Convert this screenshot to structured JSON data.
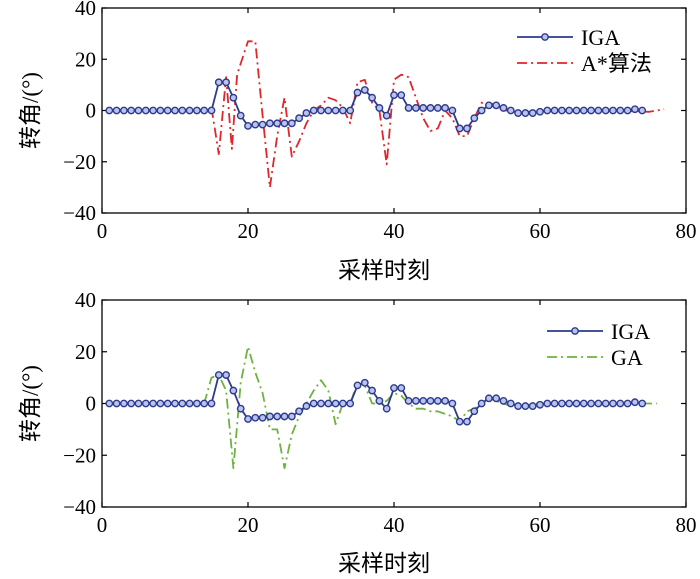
{
  "chart_data": [
    {
      "type": "line",
      "xlabel": "采样时刻",
      "ylabel": "转角/(°)",
      "xlim": [
        0,
        80
      ],
      "ylim": [
        -40,
        40
      ],
      "xticks": [
        0,
        20,
        40,
        60,
        80
      ],
      "yticks": [
        -40,
        -20,
        0,
        20,
        40
      ],
      "legend_position": "top-right",
      "series": [
        {
          "name": "IGA",
          "color": "#2e3a8c",
          "style": "solid-circle-markers",
          "x": [
            1,
            2,
            3,
            4,
            5,
            6,
            7,
            8,
            9,
            10,
            11,
            12,
            13,
            14,
            15,
            16,
            17,
            18,
            19,
            20,
            21,
            22,
            23,
            24,
            25,
            26,
            27,
            28,
            29,
            30,
            31,
            32,
            33,
            34,
            35,
            36,
            37,
            38,
            39,
            40,
            41,
            42,
            43,
            44,
            45,
            46,
            47,
            48,
            49,
            50,
            51,
            52,
            53,
            54,
            55,
            56,
            57,
            58,
            59,
            60,
            61,
            62,
            63,
            64,
            65,
            66,
            67,
            68,
            69,
            70,
            71,
            72,
            73,
            74
          ],
          "values": [
            0,
            0,
            0,
            0,
            0,
            0,
            0,
            0,
            0,
            0,
            0,
            0,
            0,
            0,
            0,
            11,
            11,
            5,
            -2,
            -6,
            -5.5,
            -5.5,
            -5,
            -5,
            -5,
            -5,
            -3,
            -1,
            0,
            0,
            0,
            0,
            0,
            0,
            7,
            8,
            5,
            1,
            -2,
            6,
            6,
            1,
            1,
            1,
            1,
            1,
            1,
            0,
            -7,
            -7,
            -3,
            0,
            2,
            2,
            1,
            0,
            -1,
            -1,
            -1,
            -0.5,
            0,
            0,
            0,
            0,
            0,
            0,
            0,
            0,
            0,
            0,
            0,
            0,
            0.5,
            0
          ]
        },
        {
          "name": "A*算法",
          "color": "#e0262b",
          "style": "dash-dot",
          "x": [
            15,
            16,
            17,
            17.8,
            18.5,
            20,
            21,
            22,
            23,
            24,
            25,
            26,
            27,
            28,
            29,
            30,
            31,
            32,
            33,
            34,
            35,
            36,
            37,
            38,
            39,
            40,
            41,
            42,
            43,
            44,
            45,
            46,
            47,
            48,
            49,
            50,
            51,
            52,
            53,
            54,
            55,
            56,
            57,
            58,
            59,
            60,
            62,
            65,
            70,
            75,
            77
          ],
          "values": [
            1,
            -17,
            13,
            -15,
            14,
            27,
            27,
            -2,
            -30,
            -10,
            5,
            -18,
            -12,
            -5,
            0,
            2,
            5,
            4,
            1,
            -5,
            11,
            12,
            3,
            0,
            -21,
            12,
            14,
            13,
            5,
            -3,
            -8,
            -7,
            0,
            -3,
            -10,
            -10,
            -3,
            3,
            3,
            2,
            0,
            0,
            -1,
            -1,
            0,
            0,
            0,
            0,
            0,
            -0.5,
            0.5
          ]
        }
      ]
    },
    {
      "type": "line",
      "xlabel": "采样时刻",
      "ylabel": "转角/(°)",
      "xlim": [
        0,
        80
      ],
      "ylim": [
        -40,
        40
      ],
      "xticks": [
        0,
        20,
        40,
        60,
        80
      ],
      "yticks": [
        -40,
        -20,
        0,
        20,
        40
      ],
      "legend_position": "top-right",
      "series": [
        {
          "name": "IGA",
          "color": "#2e3a8c",
          "style": "solid-circle-markers",
          "x": [
            1,
            2,
            3,
            4,
            5,
            6,
            7,
            8,
            9,
            10,
            11,
            12,
            13,
            14,
            15,
            16,
            17,
            18,
            19,
            20,
            21,
            22,
            23,
            24,
            25,
            26,
            27,
            28,
            29,
            30,
            31,
            32,
            33,
            34,
            35,
            36,
            37,
            38,
            39,
            40,
            41,
            42,
            43,
            44,
            45,
            46,
            47,
            48,
            49,
            50,
            51,
            52,
            53,
            54,
            55,
            56,
            57,
            58,
            59,
            60,
            61,
            62,
            63,
            64,
            65,
            66,
            67,
            68,
            69,
            70,
            71,
            72,
            73,
            74
          ],
          "values": [
            0,
            0,
            0,
            0,
            0,
            0,
            0,
            0,
            0,
            0,
            0,
            0,
            0,
            0,
            0,
            11,
            11,
            5,
            -2,
            -6,
            -5.5,
            -5.5,
            -5,
            -5,
            -5,
            -5,
            -3,
            -1,
            0,
            0,
            0,
            0,
            0,
            0,
            7,
            8,
            5,
            1,
            -2,
            6,
            6,
            1,
            1,
            1,
            1,
            1,
            1,
            0,
            -7,
            -7,
            -3,
            0,
            2,
            2,
            1,
            0,
            -1,
            -1,
            -1,
            -0.5,
            0,
            0,
            0,
            0,
            0,
            0,
            0,
            0,
            0,
            0,
            0,
            0,
            0.5,
            0
          ]
        },
        {
          "name": "GA",
          "color": "#6db33f",
          "style": "dash-dot",
          "x": [
            14,
            15,
            16,
            17,
            18,
            19,
            20,
            21,
            22,
            23,
            24,
            25,
            26,
            27,
            28,
            29,
            30,
            31,
            32,
            33,
            34,
            35,
            36,
            37,
            38,
            39,
            40,
            41,
            42,
            43,
            44,
            45,
            46,
            47,
            48,
            49,
            50,
            51,
            52,
            53,
            54,
            55,
            56,
            57,
            58,
            59,
            60,
            62,
            65,
            70,
            74,
            76
          ],
          "values": [
            0,
            10,
            11,
            5,
            -25,
            8,
            22,
            12,
            4,
            -10,
            -10,
            -25,
            -12,
            -5,
            0,
            5,
            9,
            5,
            -8,
            0,
            0,
            8,
            7,
            0,
            0,
            1,
            4,
            3,
            0,
            -2,
            -2,
            -3,
            -3,
            -4,
            -5,
            -7,
            -3,
            -2,
            0,
            2,
            1,
            0,
            -1,
            -1,
            -1,
            0,
            0,
            0,
            0,
            0,
            0,
            0
          ]
        }
      ]
    }
  ]
}
